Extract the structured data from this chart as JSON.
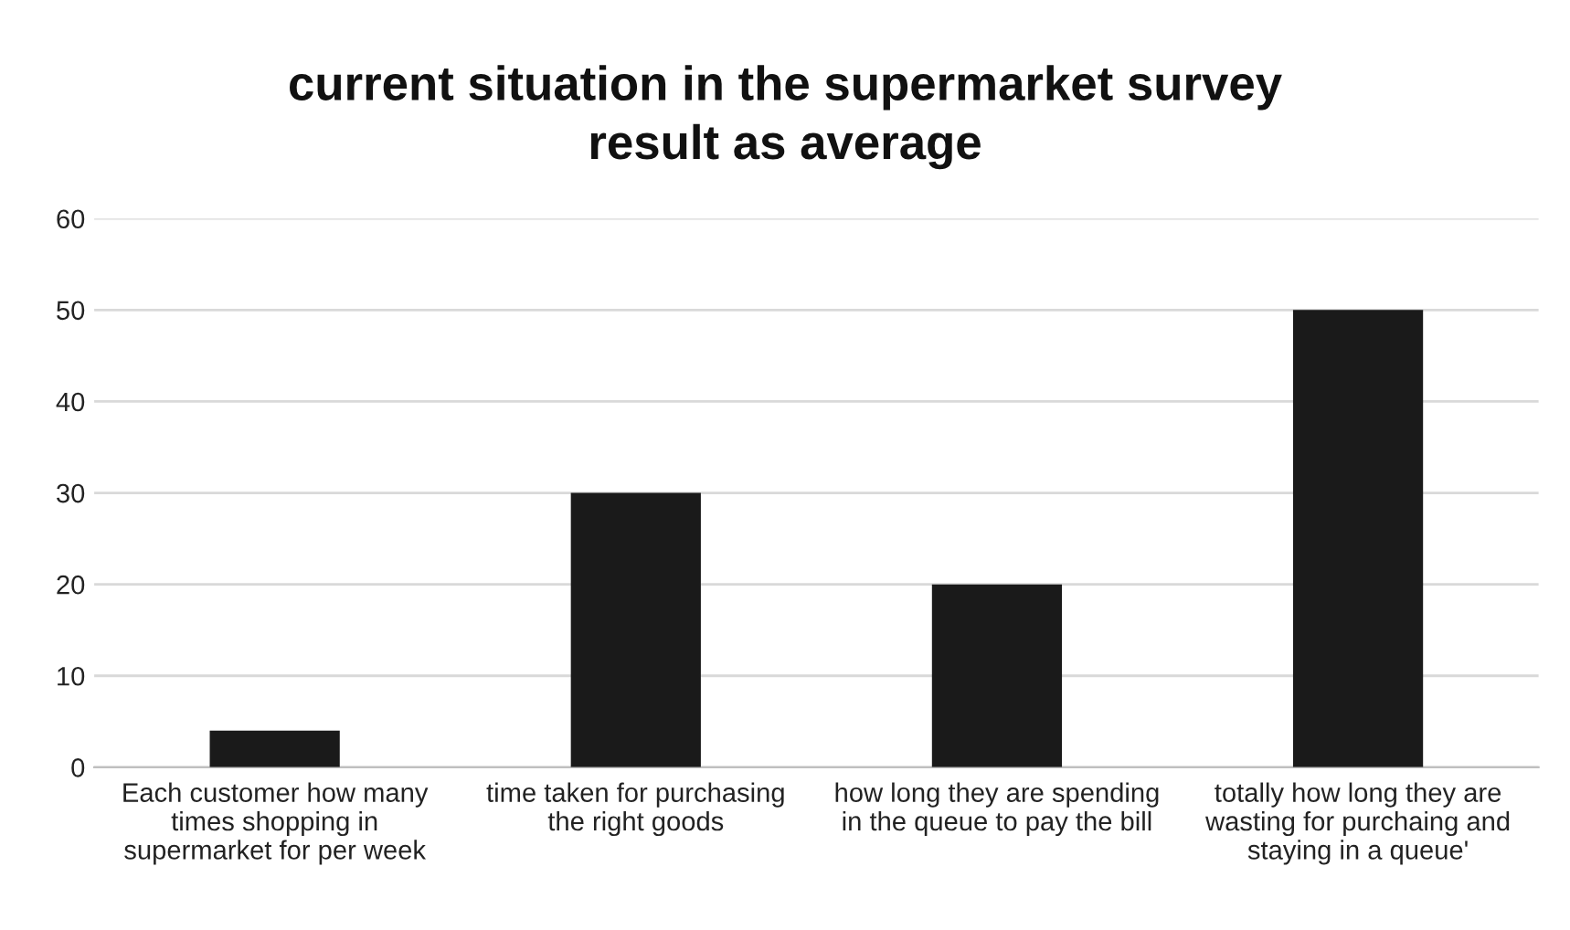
{
  "chart_data": {
    "type": "bar",
    "title": "current situation in the supermarket survey result as average",
    "categories": [
      "Each customer how many times shopping in supermarket for per week",
      "time taken for purchasing the right goods",
      "how long they are spending in the queue to pay the bill",
      "totally how long they are wasting for purchaing and staying in a queue'"
    ],
    "values": [
      4,
      30,
      20,
      50
    ],
    "color": "#1a1a1a",
    "ylim": [
      0,
      60
    ],
    "yticks": [
      0,
      10,
      20,
      30,
      40,
      50,
      60
    ],
    "grid": "y"
  }
}
